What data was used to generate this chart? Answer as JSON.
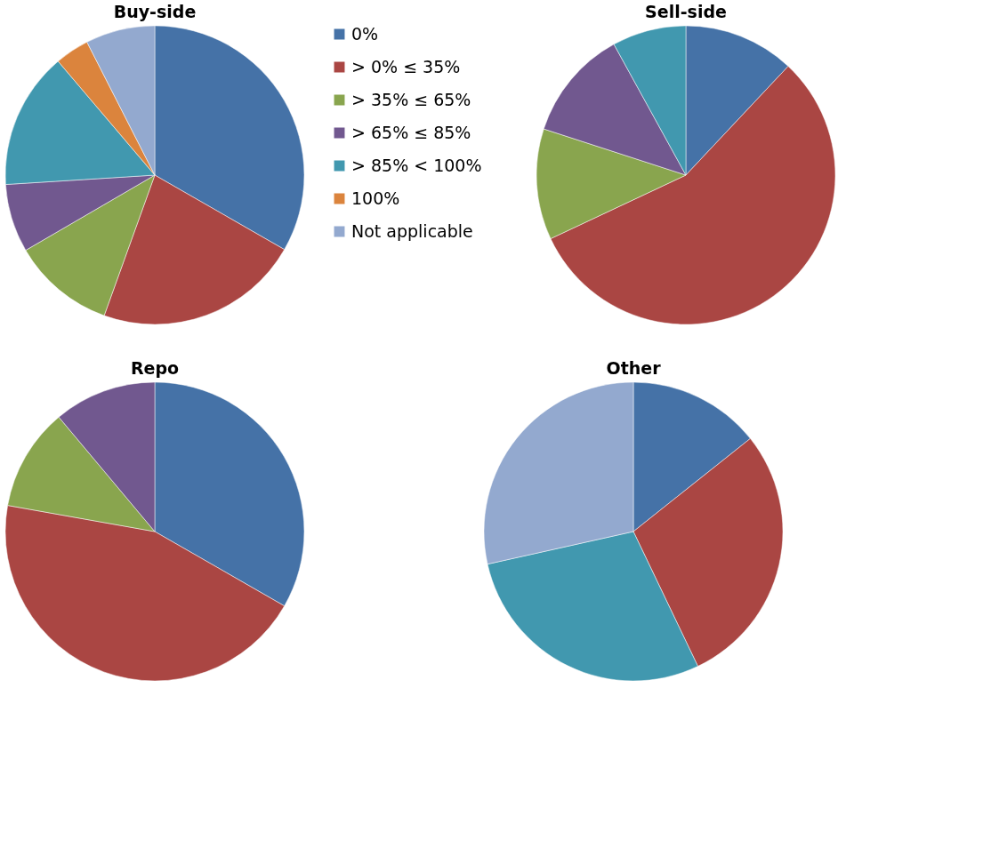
{
  "chart_data": [
    {
      "type": "pie",
      "title": "Buy-side",
      "legend": "right",
      "categories": [
        "0%",
        "> 0% ≤ 35%",
        "> 35% ≤ 65%",
        "> 65% ≤ 85%",
        "> 85% < 100%",
        "100%",
        "Not applicable"
      ],
      "values": [
        33.3,
        22.2,
        11.1,
        7.4,
        14.8,
        3.7,
        7.5
      ],
      "colors": [
        "#4572a7",
        "#aa4643",
        "#89a54e",
        "#71588f",
        "#4198af",
        "#db843d",
        "#93a9cf"
      ]
    },
    {
      "type": "pie",
      "title": "Sell-side",
      "legend": false,
      "categories": [
        null,
        null,
        null,
        null,
        null
      ],
      "values": [
        12,
        56,
        12,
        12,
        8
      ],
      "colors": [
        "#4572a7",
        "#aa4643",
        "#89a54e",
        "#71588f",
        "#4198af"
      ]
    },
    {
      "type": "pie",
      "title": "Repo",
      "legend": false,
      "categories": [
        null,
        null,
        null,
        null
      ],
      "values": [
        33.3,
        44.5,
        11.1,
        11.1
      ],
      "colors": [
        "#4572a7",
        "#aa4643",
        "#89a54e",
        "#71588f"
      ]
    },
    {
      "type": "pie",
      "title": "Other",
      "legend": false,
      "categories": [
        null,
        null,
        null,
        null
      ],
      "values": [
        14.3,
        28.6,
        28.6,
        28.5
      ],
      "colors": [
        "#4572a7",
        "#aa4643",
        "#4198af",
        "#93a9cf"
      ]
    }
  ]
}
